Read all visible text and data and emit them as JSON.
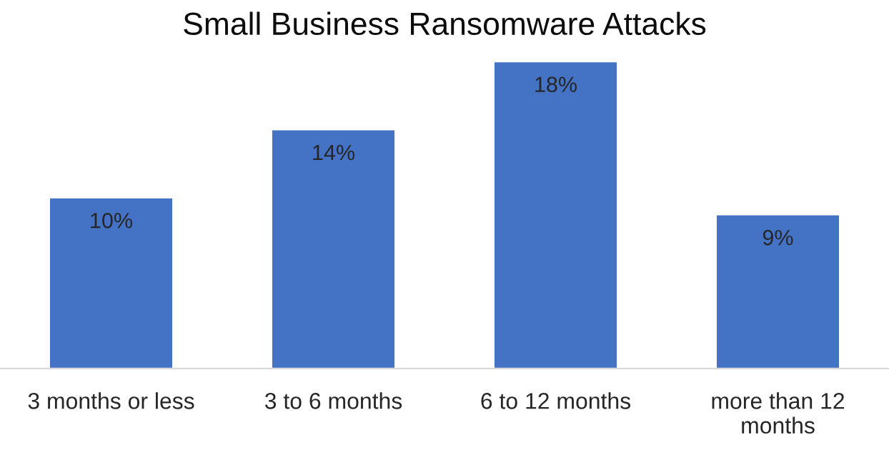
{
  "chart_data": {
    "type": "bar",
    "title": "Small Business Ransomware Attacks",
    "categories": [
      "3 months or less",
      "3 to 6 months",
      "6 to 12 months",
      "more than 12\nmonths"
    ],
    "values": [
      10,
      14,
      18,
      9
    ],
    "value_labels": [
      "10%",
      "14%",
      "18%",
      "9%"
    ],
    "color": "#4472c4",
    "grid": false,
    "legend": false
  }
}
